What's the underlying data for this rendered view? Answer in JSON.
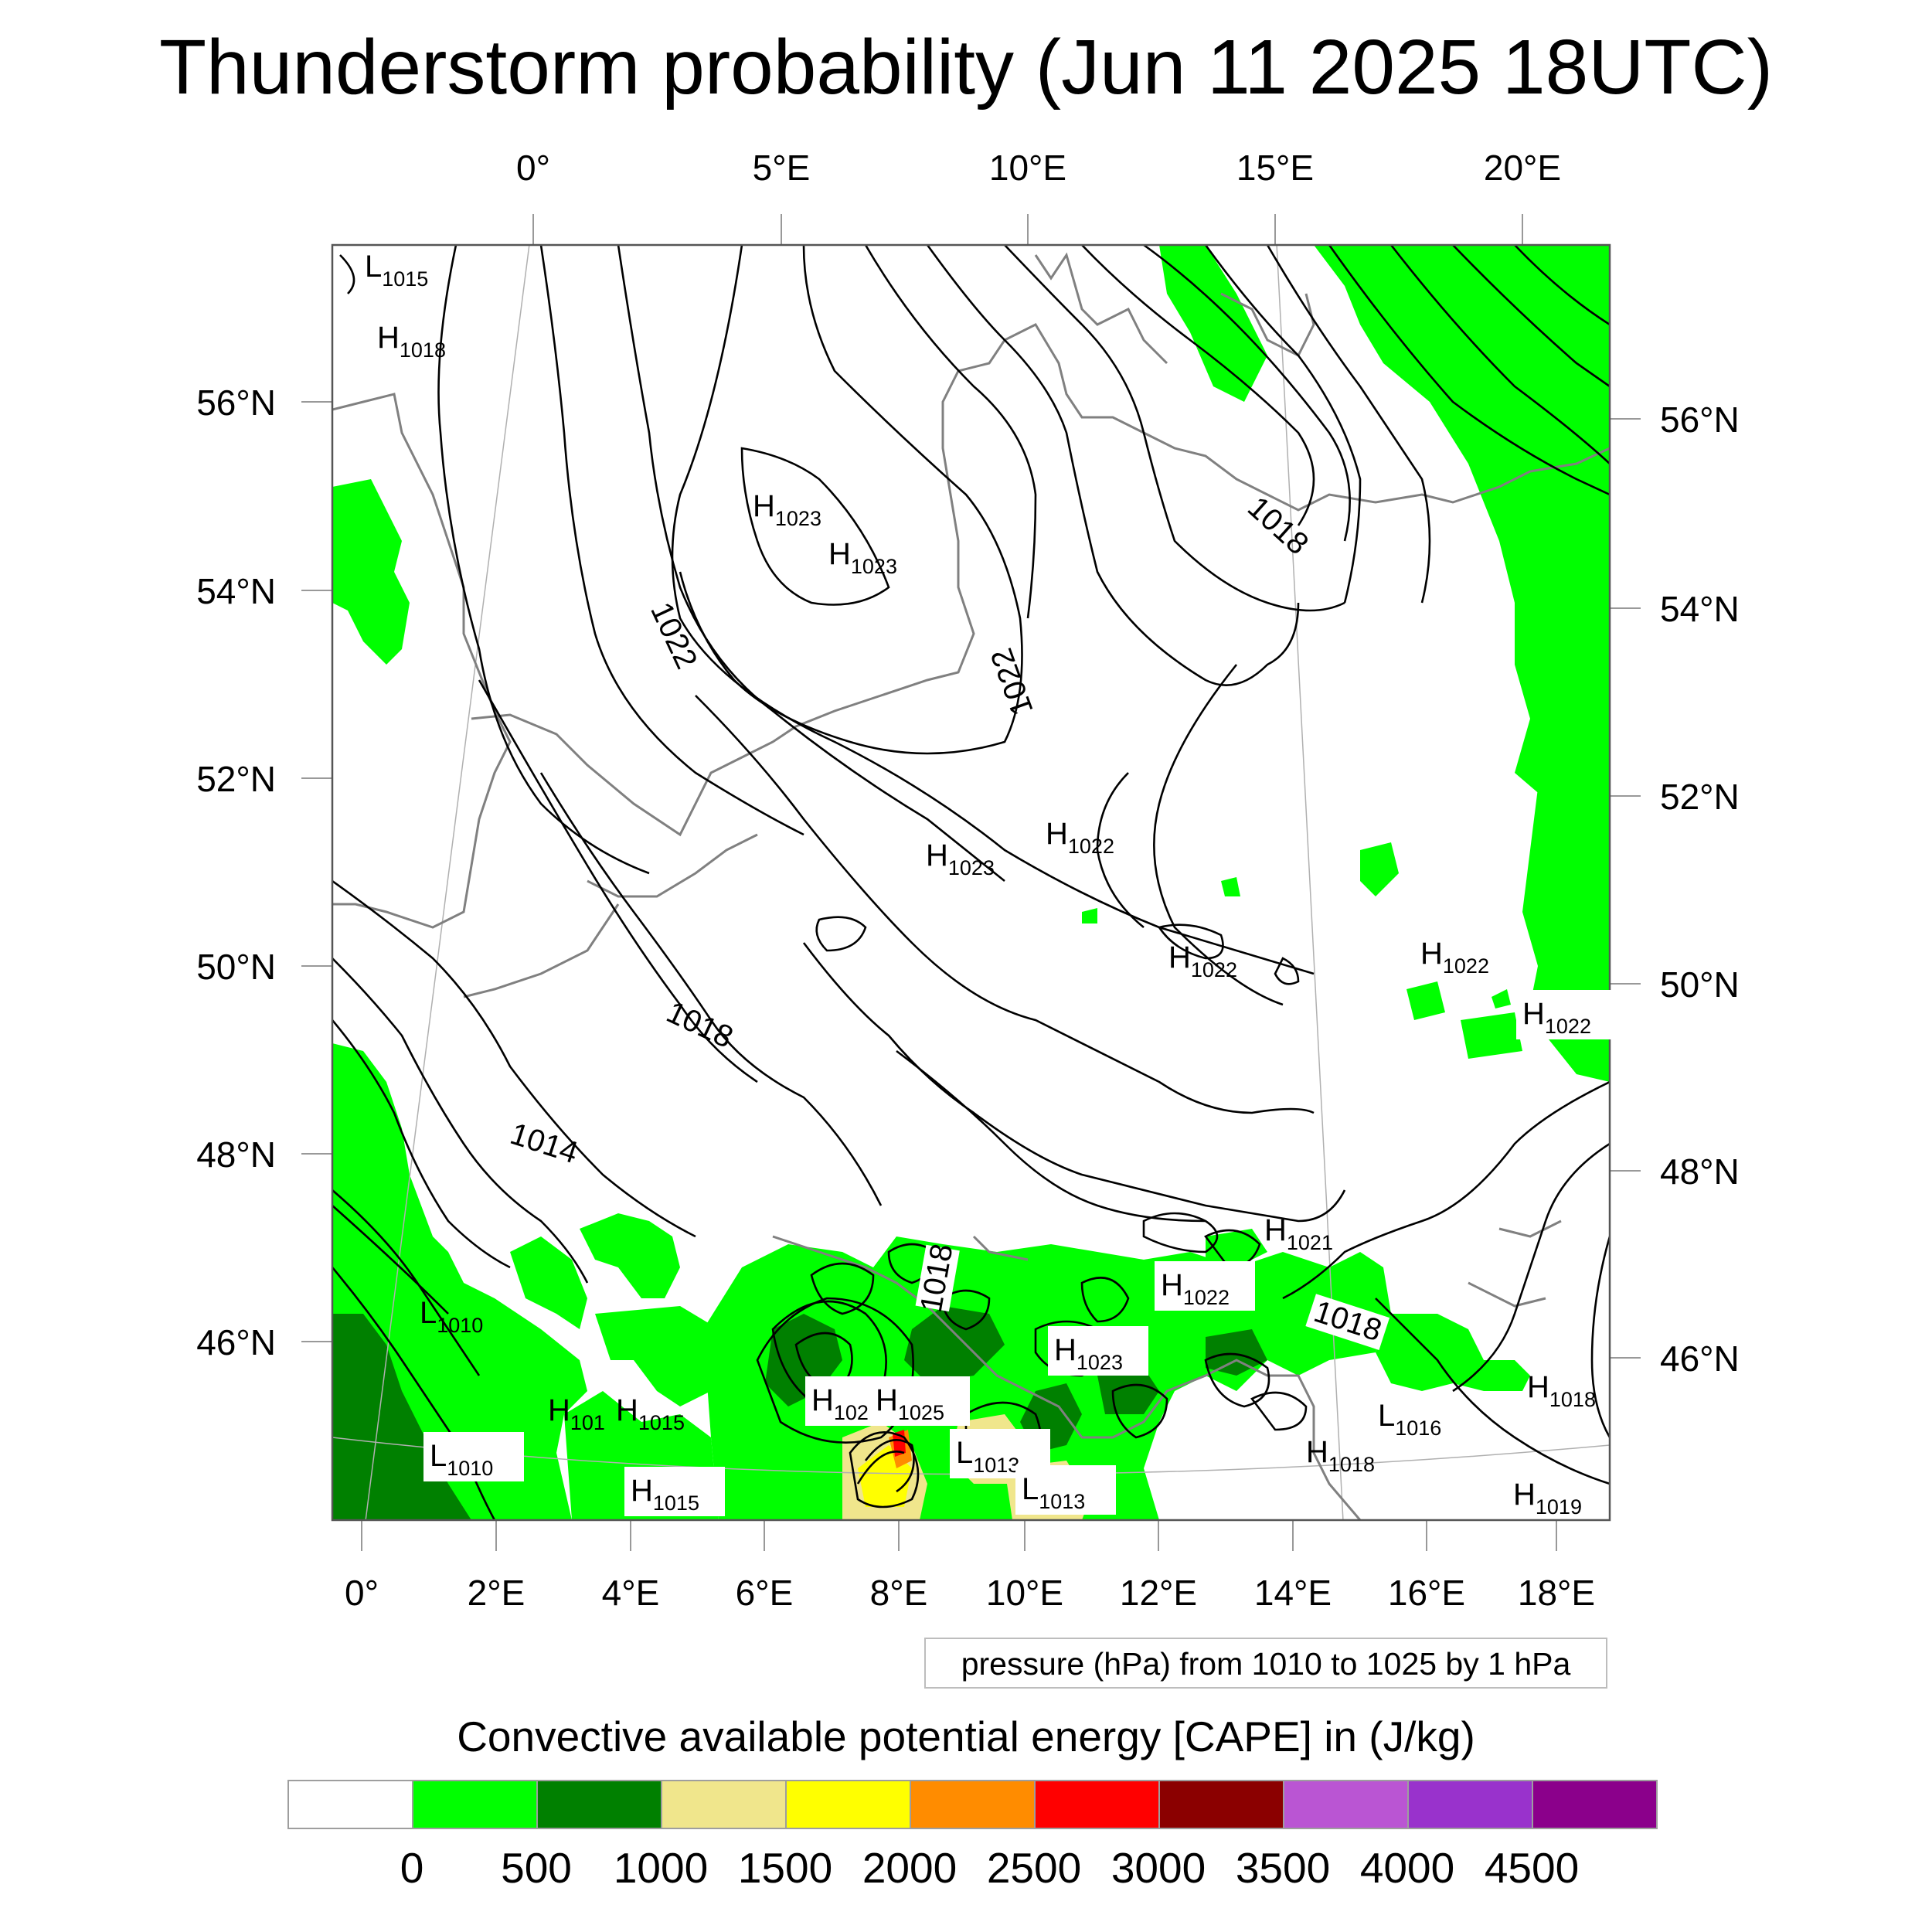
{
  "title": "Thunderstorm probability (Jun 11 2025 18UTC)",
  "top_lon_labels": [
    "0°",
    "5°E",
    "10°E",
    "15°E",
    "20°E"
  ],
  "bottom_lon_labels": [
    "0°",
    "2°E",
    "4°E",
    "6°E",
    "8°E",
    "10°E",
    "12°E",
    "14°E",
    "16°E",
    "18°E"
  ],
  "left_lat_labels": [
    "56°N",
    "54°N",
    "52°N",
    "50°N",
    "48°N",
    "46°N"
  ],
  "right_lat_labels": [
    "56°N",
    "54°N",
    "52°N",
    "50°N",
    "48°N",
    "46°N"
  ],
  "pressure_note": "pressure (hPa) from 1010 to 1025 by 1 hPa",
  "colorbar": {
    "title": "Convective available potential energy [CAPE] in (J/kg)",
    "colors": [
      "#ffffff",
      "#00ff00",
      "#008000",
      "#f0e68c",
      "#ffff00",
      "#ff8c00",
      "#ff0000",
      "#8b0000",
      "#ba55d3",
      "#9932cc",
      "#8b008b"
    ],
    "ticks": [
      "0",
      "500",
      "1000",
      "1500",
      "2000",
      "2500",
      "3000",
      "3500",
      "4000",
      "4500"
    ]
  },
  "isobar_labels": [
    "1022",
    "1022",
    "1018",
    "1018",
    "1014",
    "1018",
    "1018"
  ],
  "pressure_centers": [
    {
      "type": "L",
      "value": "1015"
    },
    {
      "type": "H",
      "value": "1018"
    },
    {
      "type": "H",
      "value": "1023"
    },
    {
      "type": "H",
      "value": "1023"
    },
    {
      "type": "H",
      "value": "1022"
    },
    {
      "type": "H",
      "value": "1023"
    },
    {
      "type": "H",
      "value": "1022"
    },
    {
      "type": "H",
      "value": "1022"
    },
    {
      "type": "H",
      "value": "1022"
    },
    {
      "type": "H",
      "value": "1021"
    },
    {
      "type": "H",
      "value": "1022"
    },
    {
      "type": "L",
      "value": "1010"
    },
    {
      "type": "H",
      "value": "1023"
    },
    {
      "type": "H",
      "value": "1018"
    },
    {
      "type": "H",
      "value": "101"
    },
    {
      "type": "H",
      "value": "1015"
    },
    {
      "type": "H",
      "value": "102"
    },
    {
      "type": "H",
      "value": "1025"
    },
    {
      "type": "L",
      "value": "1016"
    },
    {
      "type": "L",
      "value": "1010"
    },
    {
      "type": "L",
      "value": "1013"
    },
    {
      "type": "H",
      "value": "1018"
    },
    {
      "type": "H",
      "value": "1015"
    },
    {
      "type": "L",
      "value": "1013"
    },
    {
      "type": "H",
      "value": "1019"
    }
  ]
}
